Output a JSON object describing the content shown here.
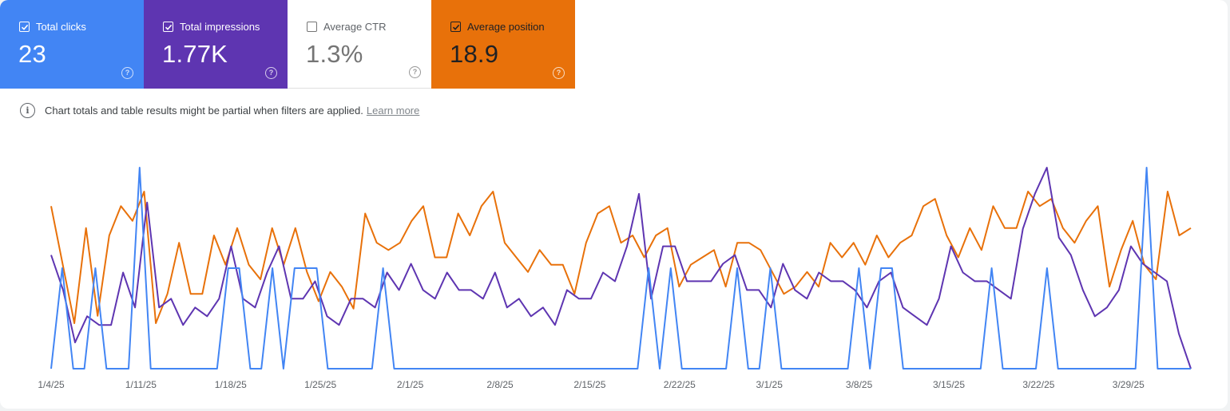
{
  "metrics": [
    {
      "key": "clicks",
      "label": "Total clicks",
      "value": "23",
      "checked": true,
      "color": "#4285f4"
    },
    {
      "key": "impressions",
      "label": "Total impressions",
      "value": "1.77K",
      "checked": true,
      "color": "#5e35b1"
    },
    {
      "key": "ctr",
      "label": "Average CTR",
      "value": "1.3%",
      "checked": false,
      "color": "#ffffff"
    },
    {
      "key": "position",
      "label": "Average position",
      "value": "18.9",
      "checked": true,
      "color": "#e8710a"
    }
  ],
  "notice": {
    "message": "Chart totals and table results might be partial when filters are applied.",
    "link": "Learn more"
  },
  "chart_data": {
    "type": "line",
    "x_tick_labels": [
      "1/4/25",
      "1/11/25",
      "1/18/25",
      "1/25/25",
      "2/1/25",
      "2/8/25",
      "2/15/25",
      "2/22/25",
      "3/1/25",
      "3/8/25",
      "3/15/25",
      "3/22/25",
      "3/29/25"
    ],
    "x_start": "1/4/25",
    "x_end": "4/2/25",
    "series": [
      {
        "name": "Total clicks",
        "color": "#4285f4",
        "values": [
          0,
          1,
          0,
          0,
          1,
          0,
          0,
          0,
          2,
          0,
          0,
          0,
          0,
          0,
          0,
          0,
          1,
          1,
          0,
          0,
          1,
          0,
          1,
          1,
          1,
          0,
          0,
          0,
          0,
          0,
          1,
          0,
          0,
          0,
          0,
          0,
          0,
          0,
          0,
          0,
          0,
          0,
          0,
          0,
          0,
          0,
          0,
          0,
          0,
          0,
          0,
          0,
          0,
          0,
          1,
          0,
          1,
          0,
          0,
          0,
          0,
          0,
          1,
          0,
          0,
          1,
          0,
          0,
          0,
          0,
          0,
          0,
          0,
          1,
          0,
          1,
          1,
          0,
          0,
          0,
          0,
          0,
          0,
          0,
          0,
          1,
          0,
          0,
          0,
          0,
          1,
          0,
          0,
          0,
          0,
          0,
          0,
          0,
          0,
          2,
          0,
          0,
          0,
          0
        ]
      },
      {
        "name": "Total impressions",
        "color": "#5e35b1",
        "values": [
          13,
          9,
          3,
          6,
          5,
          5,
          11,
          7,
          19,
          7,
          8,
          5,
          7,
          6,
          8,
          14,
          8,
          7,
          11,
          14,
          8,
          8,
          10,
          6,
          5,
          8,
          8,
          7,
          11,
          9,
          12,
          9,
          8,
          11,
          9,
          9,
          8,
          11,
          7,
          8,
          6,
          7,
          5,
          9,
          8,
          8,
          11,
          10,
          14,
          20,
          8,
          14,
          14,
          10,
          10,
          10,
          12,
          13,
          9,
          9,
          7,
          12,
          9,
          8,
          11,
          10,
          10,
          9,
          7,
          10,
          11,
          7,
          6,
          5,
          8,
          14,
          11,
          10,
          10,
          9,
          8,
          16,
          20,
          23,
          15,
          13,
          9,
          6,
          7,
          9,
          14,
          12,
          11,
          10,
          4,
          0
        ]
      },
      {
        "name": "Average position",
        "color": "#e8710a",
        "values": [
          12,
          20,
          28,
          15,
          27,
          16,
          12,
          14,
          10,
          28,
          24,
          17,
          24,
          24,
          16,
          20,
          15,
          20,
          22,
          15,
          20,
          15,
          21,
          25,
          21,
          23,
          26,
          13,
          17,
          18,
          17,
          14,
          12,
          19,
          19,
          13,
          16,
          12,
          10,
          17,
          19,
          21,
          18,
          20,
          20,
          24,
          17,
          13,
          12,
          17,
          16,
          19,
          16,
          15,
          23,
          20,
          19,
          18,
          23,
          17,
          17,
          18,
          21,
          24,
          23,
          21,
          23,
          17,
          19,
          17,
          20,
          16,
          19,
          17,
          16,
          12,
          11,
          16,
          19,
          15,
          18,
          12,
          15,
          15,
          10,
          12,
          11,
          15,
          17,
          14,
          12,
          23,
          18,
          14,
          20,
          22,
          10,
          16,
          15
        ]
      }
    ],
    "grid": false,
    "legend": "none"
  }
}
